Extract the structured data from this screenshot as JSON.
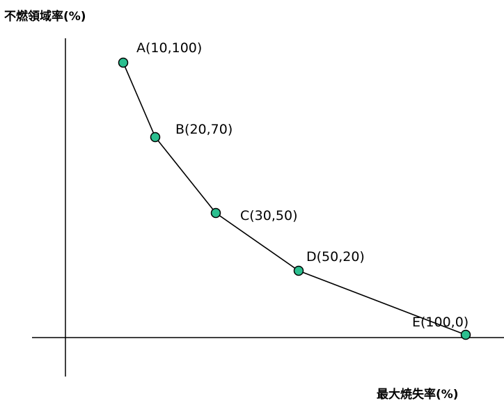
{
  "chart_data": {
    "type": "line",
    "ylabel": "不燃領域率(%)",
    "xlabel": "最大焼失率(%)",
    "grid": false,
    "legend": "none",
    "points": [
      {
        "x": 10,
        "y": 100,
        "label": "A(10,100)"
      },
      {
        "x": 20,
        "y": 70,
        "label": "B(20,70)"
      },
      {
        "x": 30,
        "y": 50,
        "label": "C(30,50)"
      },
      {
        "x": 50,
        "y": 20,
        "label": "D(50,20)"
      },
      {
        "x": 100,
        "y": 0,
        "label": "E(100,0)"
      }
    ],
    "colors": {
      "line": "#000000",
      "marker_fill": "#2bbf8f",
      "marker_stroke": "#000000",
      "axis": "#000000"
    }
  }
}
